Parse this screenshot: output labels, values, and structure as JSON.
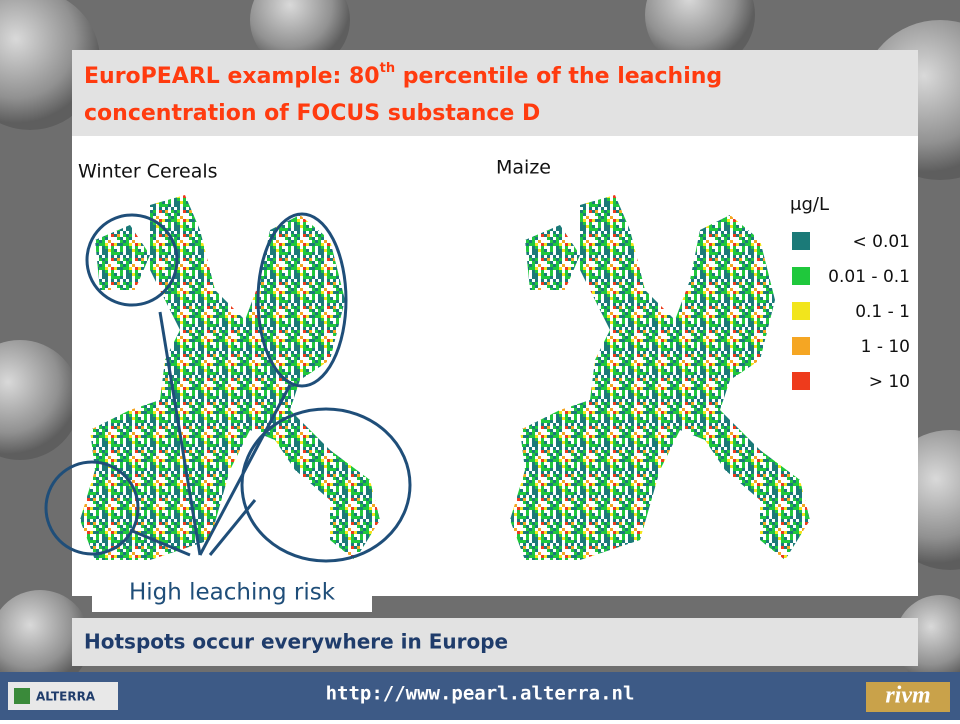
{
  "slide": {
    "title": {
      "before": "EuroPEARL example: 80",
      "superscript": "th",
      "after": " percentile of the leaching concentration of FOCUS substance D"
    },
    "maps": [
      {
        "label": "Winter Cereals"
      },
      {
        "label": "Maize"
      }
    ],
    "legend": {
      "unit": "μg/L",
      "entries": [
        {
          "label": "< 0.01",
          "color": "#1b7a78"
        },
        {
          "label": "0.01 -   0.1",
          "color": "#1fc83c"
        },
        {
          "label": "0.1 -      1",
          "color": "#f2e51c"
        },
        {
          "label": "1 -    10",
          "color": "#f5a623"
        },
        {
          "label": ">    10",
          "color": "#ee3b1c"
        }
      ]
    },
    "annotation": "High leaching risk",
    "conclusion": "Hotspots occur everywhere in Europe",
    "footer": {
      "url": "http://www.pearl.alterra.nl",
      "left_logo": "ALTERRA",
      "right_logo": "rivm"
    }
  }
}
